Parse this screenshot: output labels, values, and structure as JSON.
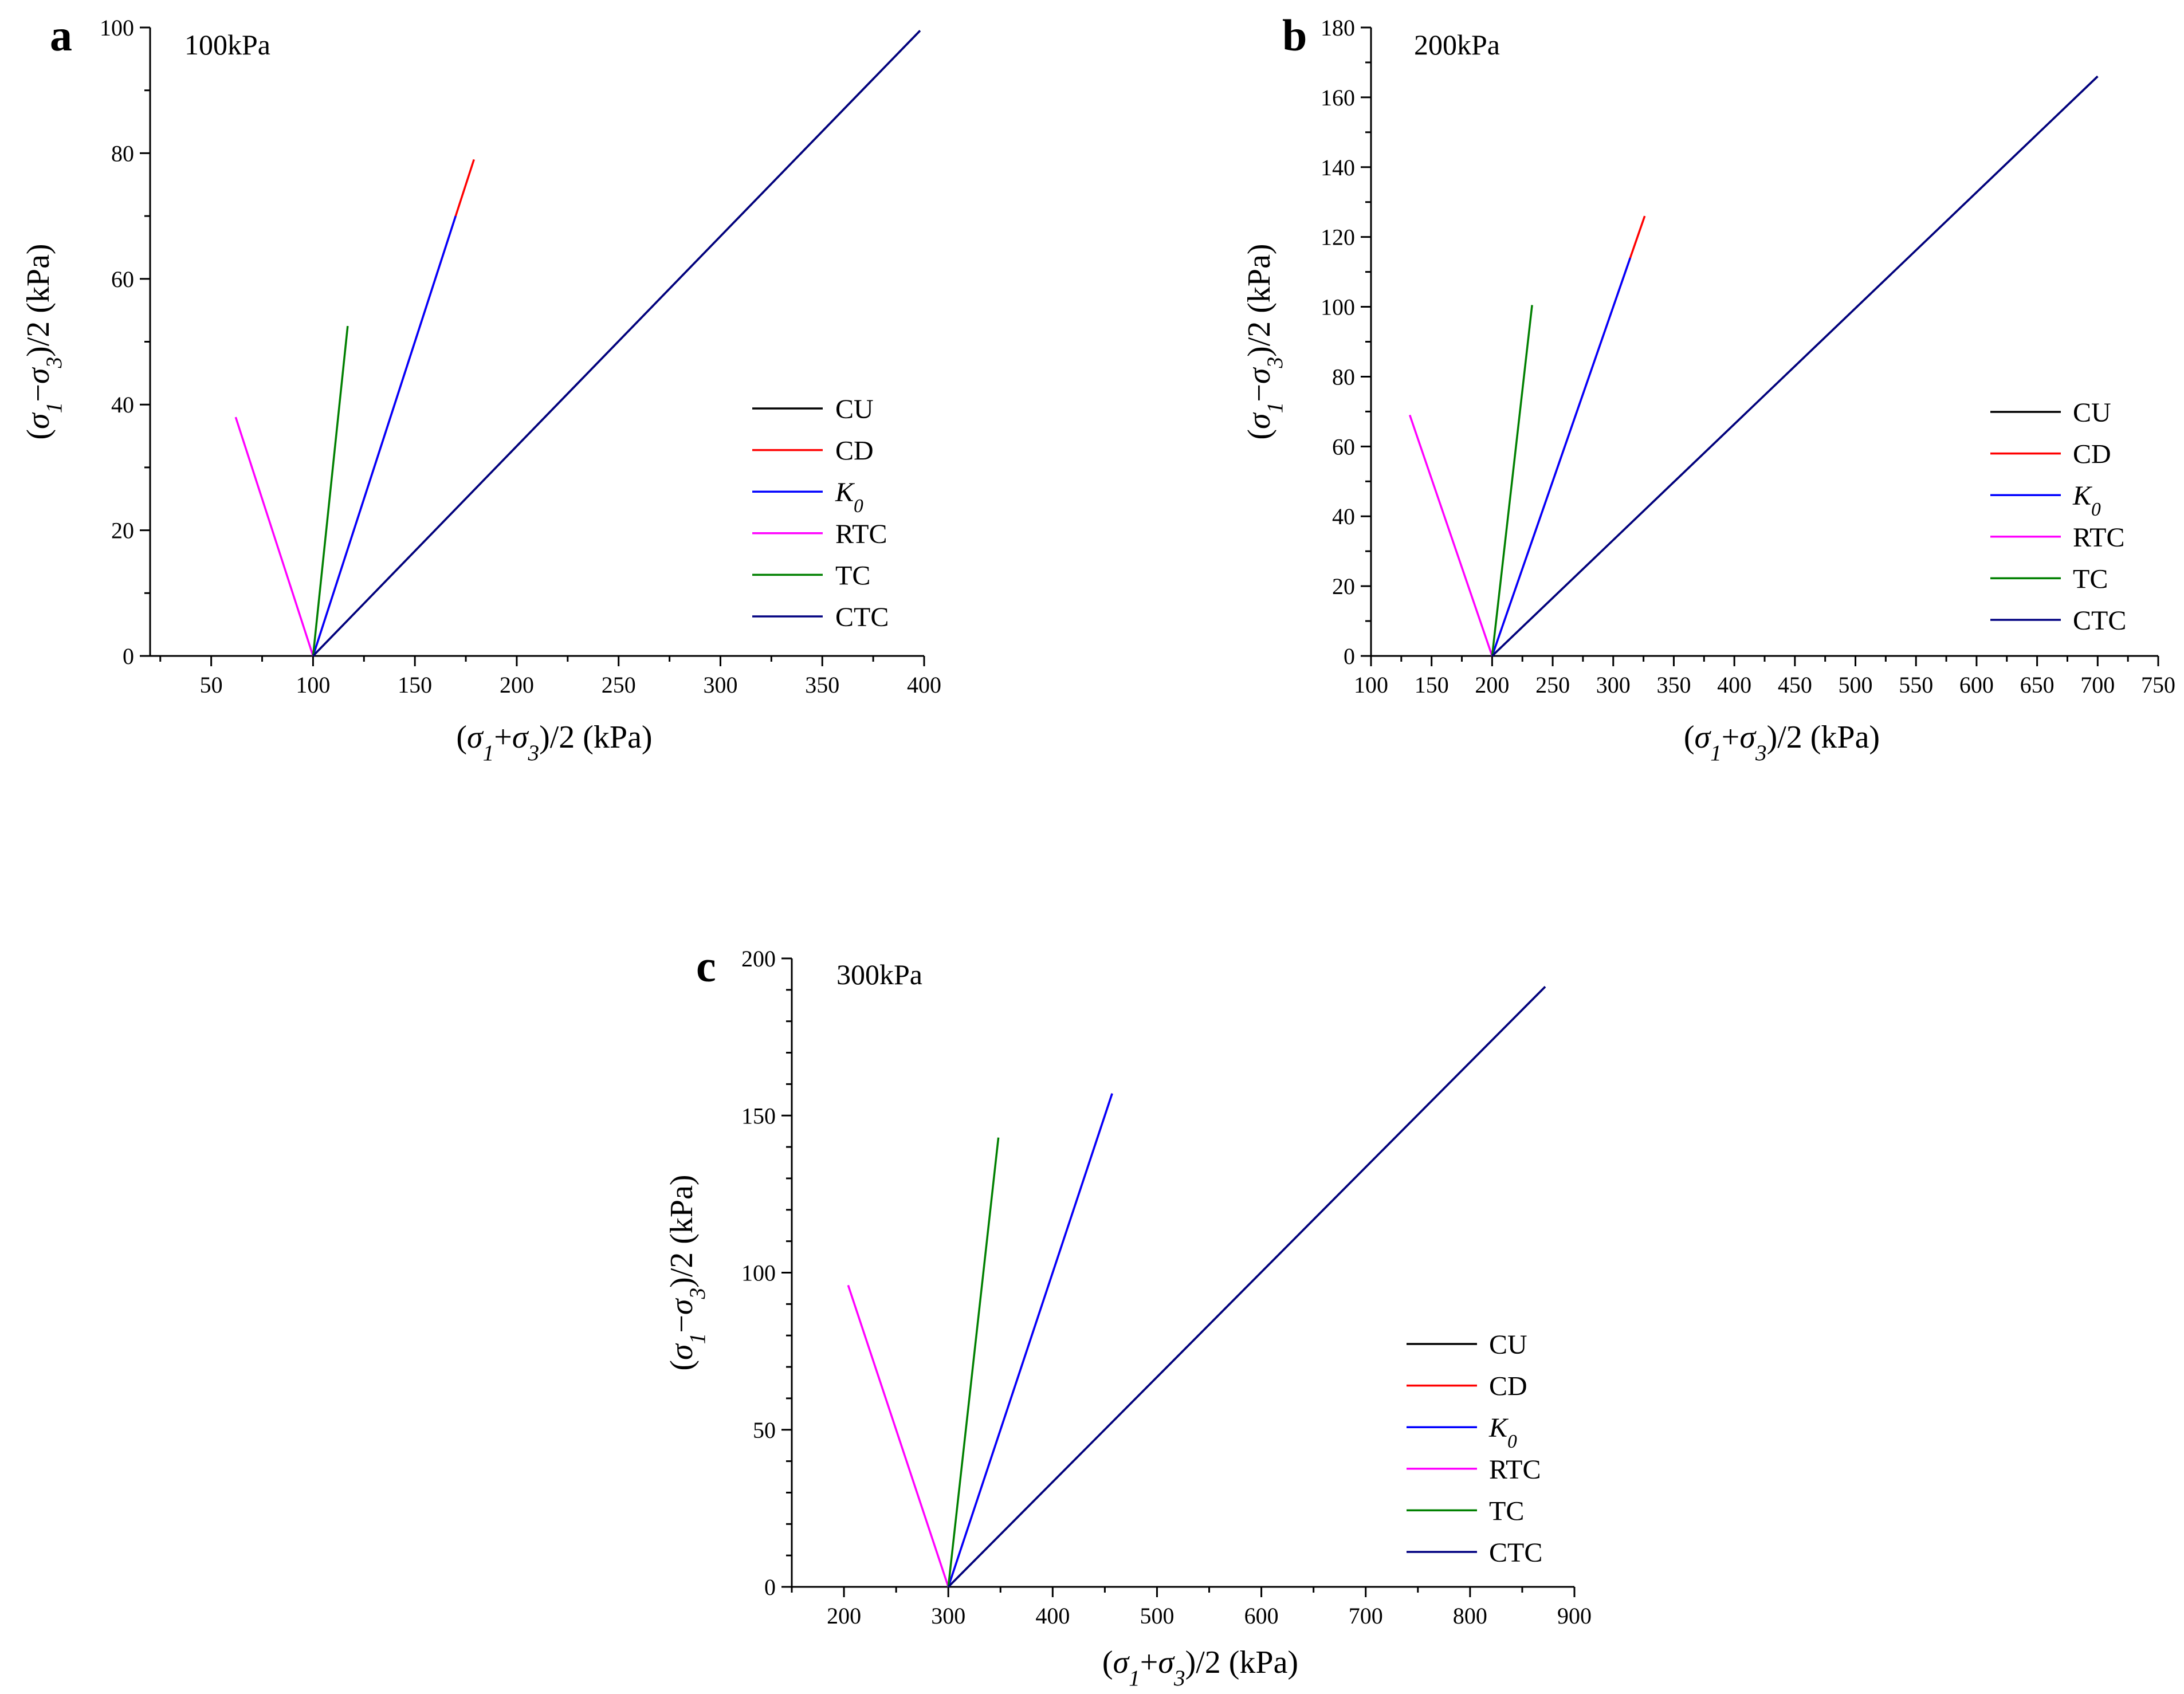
{
  "chart_data": [
    {
      "type": "line",
      "panel_label": "a",
      "title": "100kPa",
      "xlabel": "(σ1+σ3)/2 (kPa)",
      "ylabel": "(σ1−σ3)/2 (kPa)",
      "xlim": [
        20,
        400
      ],
      "ylim": [
        0,
        100
      ],
      "xticks": [
        50,
        100,
        150,
        200,
        250,
        300,
        350,
        400
      ],
      "yticks": [
        0,
        20,
        40,
        60,
        80,
        100
      ],
      "legend": "center-right",
      "series": [
        {
          "name": "CU",
          "color": "#000000",
          "x": [
            100,
            398
          ],
          "y": [
            0,
            99.5
          ]
        },
        {
          "name": "CD",
          "color": "#ff0000",
          "x": [
            100,
            179
          ],
          "y": [
            0,
            79
          ]
        },
        {
          "name": "K0",
          "color": "#0000ff",
          "x": [
            100,
            170
          ],
          "y": [
            0,
            70
          ]
        },
        {
          "name": "RTC",
          "color": "#ff00ff",
          "x": [
            100,
            62
          ],
          "y": [
            0,
            38
          ]
        },
        {
          "name": "TC",
          "color": "#008000",
          "x": [
            100,
            117
          ],
          "y": [
            0,
            52.5
          ]
        },
        {
          "name": "CTC",
          "color": "#000080",
          "x": [
            100,
            398
          ],
          "y": [
            0,
            99.5
          ]
        }
      ]
    },
    {
      "type": "line",
      "panel_label": "b",
      "title": "200kPa",
      "xlabel": "(σ1+σ3)/2 (kPa)",
      "ylabel": "(σ1−σ3)/2 (kPa)",
      "xlim": [
        100,
        750
      ],
      "ylim": [
        0,
        180
      ],
      "xticks": [
        100,
        150,
        200,
        250,
        300,
        350,
        400,
        450,
        500,
        550,
        600,
        650,
        700,
        750
      ],
      "yticks": [
        0,
        20,
        40,
        60,
        80,
        100,
        120,
        140,
        160,
        180
      ],
      "legend": "center-right",
      "series": [
        {
          "name": "CU",
          "color": "#000000",
          "x": [
            200,
            700
          ],
          "y": [
            0,
            166
          ]
        },
        {
          "name": "CD",
          "color": "#ff0000",
          "x": [
            200,
            326
          ],
          "y": [
            0,
            126
          ]
        },
        {
          "name": "K0",
          "color": "#0000ff",
          "x": [
            200,
            314
          ],
          "y": [
            0,
            114
          ]
        },
        {
          "name": "RTC",
          "color": "#ff00ff",
          "x": [
            200,
            132
          ],
          "y": [
            0,
            69
          ]
        },
        {
          "name": "TC",
          "color": "#008000",
          "x": [
            200,
            233
          ],
          "y": [
            0,
            100.5
          ]
        },
        {
          "name": "CTC",
          "color": "#000080",
          "x": [
            200,
            700
          ],
          "y": [
            0,
            166
          ]
        }
      ]
    },
    {
      "type": "line",
      "panel_label": "c",
      "title": "300kPa",
      "xlabel": "(σ1+σ3)/2 (kPa)",
      "ylabel": "(σ1−σ3)/2 (kPa)",
      "xlim": [
        150,
        900
      ],
      "ylim": [
        0,
        200
      ],
      "xticks": [
        200,
        300,
        400,
        500,
        600,
        700,
        800,
        900
      ],
      "yticks": [
        0,
        50,
        100,
        150,
        200
      ],
      "legend": "lower-right",
      "series": [
        {
          "name": "CU",
          "color": "#000000",
          "x": [
            300,
            872
          ],
          "y": [
            0,
            191
          ]
        },
        {
          "name": "CD",
          "color": "#ff0000",
          "x": [
            300,
            457
          ],
          "y": [
            0,
            157
          ]
        },
        {
          "name": "K0",
          "color": "#0000ff",
          "x": [
            300,
            457
          ],
          "y": [
            0,
            157
          ]
        },
        {
          "name": "RTC",
          "color": "#ff00ff",
          "x": [
            300,
            204
          ],
          "y": [
            0,
            96
          ]
        },
        {
          "name": "TC",
          "color": "#008000",
          "x": [
            300,
            348
          ],
          "y": [
            0,
            143
          ]
        },
        {
          "name": "CTC",
          "color": "#000080",
          "x": [
            300,
            872
          ],
          "y": [
            0,
            191
          ]
        }
      ]
    }
  ]
}
